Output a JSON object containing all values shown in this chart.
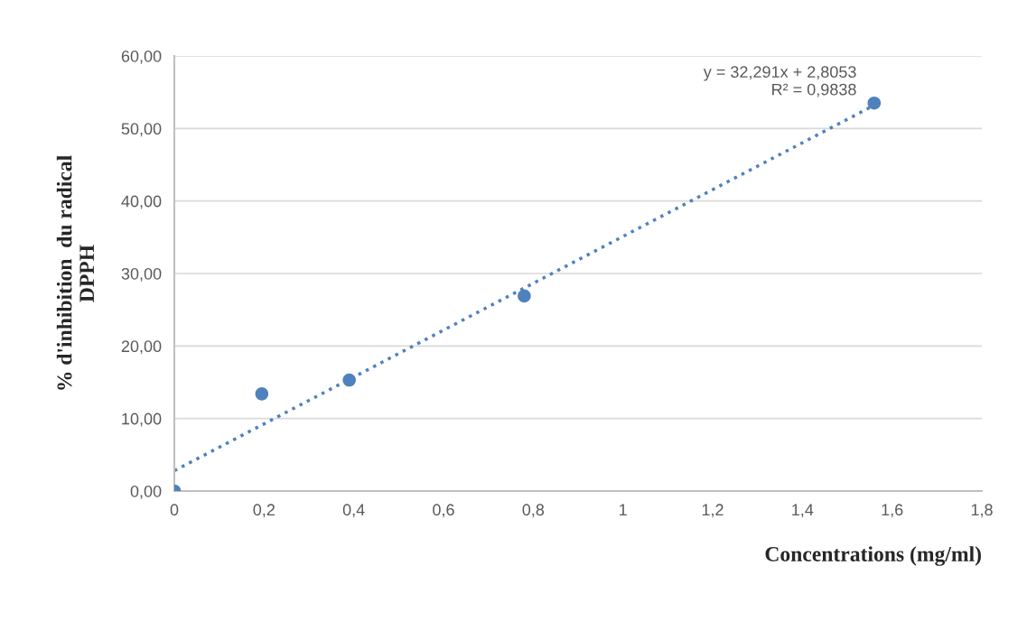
{
  "chart_data": {
    "type": "scatter",
    "xlabel": "Concentrations (mg/ml)",
    "ylabel": "% d'inhibition  du radical\nDPPH",
    "series": [
      {
        "color": "#4f81bd",
        "marker": "circle",
        "x": [
          0,
          0.195,
          0.39,
          0.78,
          1.56
        ],
        "values": [
          0,
          13.4,
          15.3,
          26.9,
          53.5
        ]
      },
      {
        "type": "line",
        "color": "#4f81bd",
        "line_style": "dotted",
        "marker": "none",
        "x": [
          0,
          1.56
        ],
        "values": [
          2.8,
          53.2
        ]
      }
    ],
    "annotations": [
      "y = 32,291x + 2,8053\nR² = 0,9838"
    ],
    "xlim": [
      0,
      1.8
    ],
    "ylim": [
      0,
      60
    ],
    "xticks": [
      0,
      {
        "value": 0.2,
        "label": "0,2"
      },
      {
        "value": 0.4,
        "label": "0,4"
      },
      {
        "value": 0.6,
        "label": "0,6"
      },
      {
        "value": 0.8,
        "label": "0,8"
      },
      1,
      {
        "value": 1.2,
        "label": "1,2"
      },
      {
        "value": 1.4,
        "label": "1,4"
      },
      {
        "value": 1.6,
        "label": "1,6"
      },
      {
        "value": 1.8,
        "label": "1,8"
      }
    ],
    "yticks": [
      {
        "value": 0,
        "label": "0,00"
      },
      {
        "value": 10,
        "label": "10,00"
      },
      {
        "value": 20,
        "label": "20,00"
      },
      {
        "value": 30,
        "label": "30,00"
      },
      {
        "value": 40,
        "label": "40,00"
      },
      {
        "value": 50,
        "label": "50,00"
      },
      {
        "value": 60,
        "label": "60,00"
      }
    ],
    "grid": "y",
    "legend": false
  }
}
